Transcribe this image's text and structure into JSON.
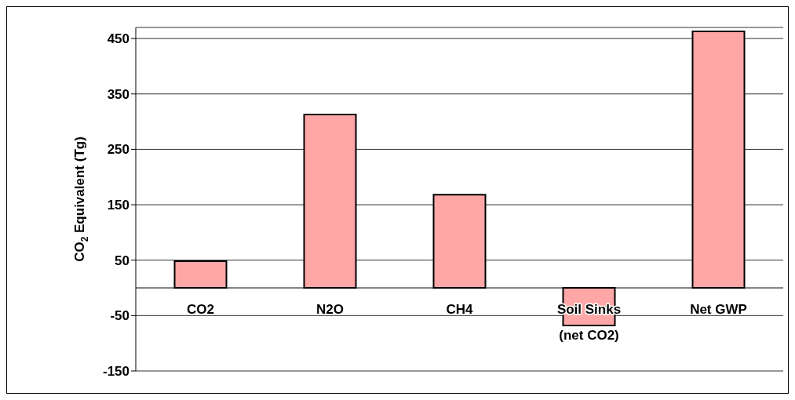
{
  "chart_data": {
    "type": "bar",
    "ylabel": "CO$_{2}$ Equivalent (Tg)",
    "categories": [
      "CO2",
      "N2O",
      "CH4",
      "Soil Sinks\n(net CO2)",
      "Net GWP"
    ],
    "values": [
      48,
      313,
      168,
      -68,
      463
    ],
    "color": "#ffa6a6",
    "ylim": [
      -150,
      470
    ],
    "yticks": [
      -150,
      -50,
      50,
      150,
      250,
      350,
      450
    ],
    "grid": "y"
  }
}
